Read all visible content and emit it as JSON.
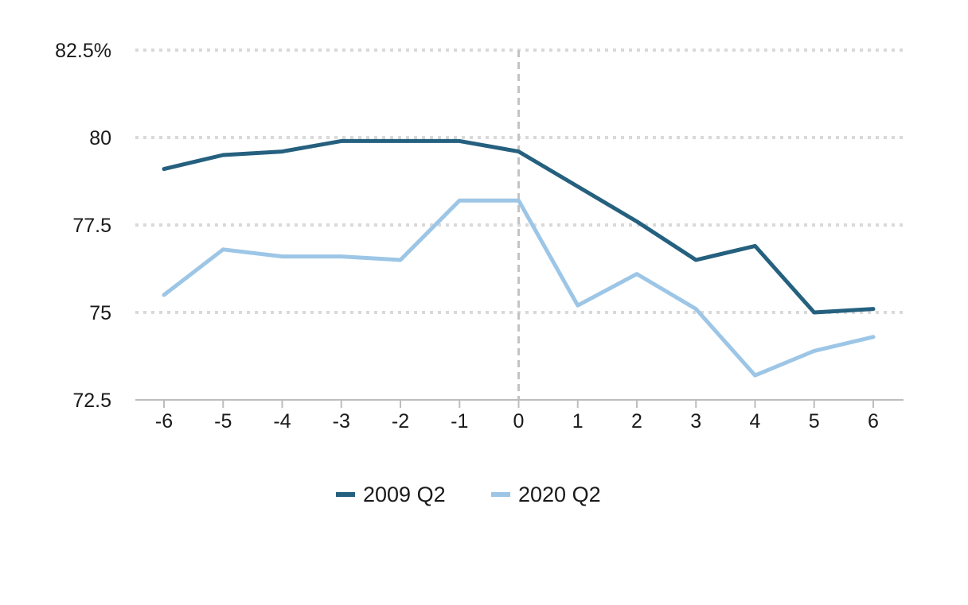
{
  "chart_data": {
    "type": "line",
    "x": [
      -6,
      -5,
      -4,
      -3,
      -2,
      -1,
      0,
      1,
      2,
      3,
      4,
      5,
      6
    ],
    "x_tick_labels": [
      "-6",
      "-5",
      "-4",
      "-3",
      "-2",
      "-1",
      "0",
      "1",
      "2",
      "3",
      "4",
      "5",
      "6"
    ],
    "ylim": [
      72.5,
      82.5
    ],
    "y_ticks": [
      72.5,
      75,
      77.5,
      80,
      82.5
    ],
    "y_tick_labels": [
      "72.5",
      "75",
      "77.5",
      "80",
      "82.5%"
    ],
    "reference_line_x": 0,
    "grid": "horizontal dotted",
    "legend_position": "bottom-center",
    "series": [
      {
        "name": "2009 Q2",
        "color": "#25607f",
        "values": [
          79.1,
          79.5,
          79.6,
          79.9,
          79.9,
          79.9,
          79.6,
          78.6,
          77.6,
          76.5,
          76.9,
          75.0,
          75.1
        ]
      },
      {
        "name": "2020 Q2",
        "color": "#9dc6e6",
        "values": [
          75.5,
          76.8,
          76.6,
          76.6,
          76.5,
          78.2,
          78.2,
          75.2,
          76.1,
          75.1,
          73.2,
          73.9,
          74.3
        ]
      }
    ],
    "colors": {
      "grid": "#d9d9d9",
      "axis": "#bdbdbd",
      "reference_line": "#c4c4c4",
      "text": "#1a1a1a"
    }
  }
}
